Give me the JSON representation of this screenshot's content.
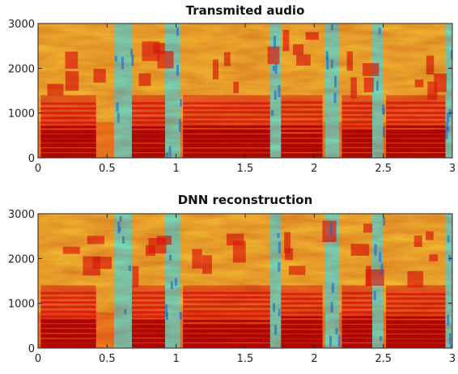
{
  "chart_data": [
    {
      "type": "heatmap",
      "title": "Transmited audio",
      "xlabel": "",
      "ylabel": "",
      "xlim": [
        0,
        3
      ],
      "ylim": [
        0,
        3000
      ],
      "x_ticks": [
        "0",
        "0.5",
        "1",
        "1.5",
        "2",
        "2.5",
        "3"
      ],
      "y_ticks": [
        "0",
        "1000",
        "2000",
        "3000"
      ],
      "x_tick_values": [
        0,
        0.5,
        1,
        1.5,
        2,
        2.5,
        3
      ],
      "y_tick_values": [
        0,
        1000,
        2000,
        3000
      ],
      "colormap": "jet",
      "grid": false
    },
    {
      "type": "heatmap",
      "title": "DNN reconstruction",
      "xlabel": "",
      "ylabel": "",
      "xlim": [
        0,
        3
      ],
      "ylim": [
        0,
        3000
      ],
      "x_ticks": [
        "0",
        "0.5",
        "1",
        "1.5",
        "2",
        "2.5",
        "3"
      ],
      "y_ticks": [
        "0",
        "1000",
        "2000",
        "3000"
      ],
      "x_tick_values": [
        0,
        0.5,
        1,
        1.5,
        2,
        2.5,
        3
      ],
      "y_tick_values": [
        0,
        1000,
        2000,
        3000
      ],
      "colormap": "jet",
      "grid": false
    }
  ],
  "spectral_features": {
    "low_energy_bands_s": [
      [
        0.55,
        0.68
      ],
      [
        0.92,
        1.03
      ],
      [
        1.68,
        1.76
      ],
      [
        2.08,
        2.18
      ],
      [
        2.42,
        2.5
      ],
      [
        2.95,
        3.0
      ]
    ],
    "harmonic_segments_s": [
      [
        0.02,
        0.42
      ],
      [
        0.68,
        0.92
      ],
      [
        1.05,
        1.68
      ],
      [
        1.76,
        2.06
      ],
      [
        2.2,
        2.42
      ],
      [
        2.52,
        2.95
      ]
    ],
    "colors": {
      "dark_red": "#a80000",
      "red": "#e02010",
      "orange": "#f08020",
      "yellow": "#f0e040",
      "cyan": "#60e0d0",
      "blue": "#2060d0"
    }
  }
}
